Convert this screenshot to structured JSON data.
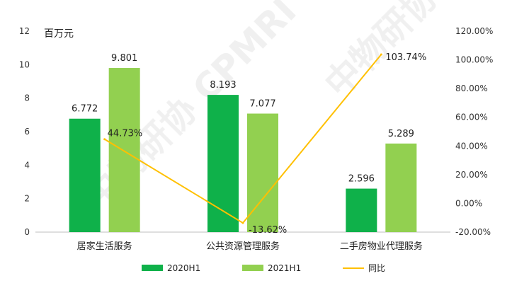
{
  "chart_data": {
    "type": "bar",
    "unit_label": "百万元",
    "categories": [
      "居家生活服务",
      "公共资源管理服务",
      "二手房物业代理服务"
    ],
    "series": [
      {
        "name": "2020H1",
        "type": "bar",
        "axis": "left",
        "color": "#0fb14a",
        "values": [
          6.772,
          8.193,
          2.596
        ],
        "labels": [
          "6.772",
          "8.193",
          "2.596"
        ]
      },
      {
        "name": "2021H1",
        "type": "bar",
        "axis": "left",
        "color": "#92d050",
        "values": [
          9.801,
          7.077,
          5.289
        ],
        "labels": [
          "9.801",
          "7.077",
          "5.289"
        ]
      },
      {
        "name": "同比",
        "type": "line",
        "axis": "right",
        "color": "#ffc000",
        "values": [
          44.73,
          -13.62,
          103.74
        ],
        "labels": [
          "44.73%",
          "-13.62%",
          "103.74%"
        ]
      }
    ],
    "y_left": {
      "min": 0,
      "max": 12,
      "step": 2,
      "ticks": [
        "0",
        "2",
        "4",
        "6",
        "8",
        "10",
        "12"
      ]
    },
    "y_right": {
      "min": -20,
      "max": 120,
      "step": 20,
      "ticks": [
        "-20.00%",
        "0.00%",
        "20.00%",
        "40.00%",
        "60.00%",
        "80.00%",
        "100.00%",
        "120.00%"
      ]
    },
    "legend_position": "bottom",
    "gridlines": false,
    "watermark": "中物研协 CPMRI"
  }
}
